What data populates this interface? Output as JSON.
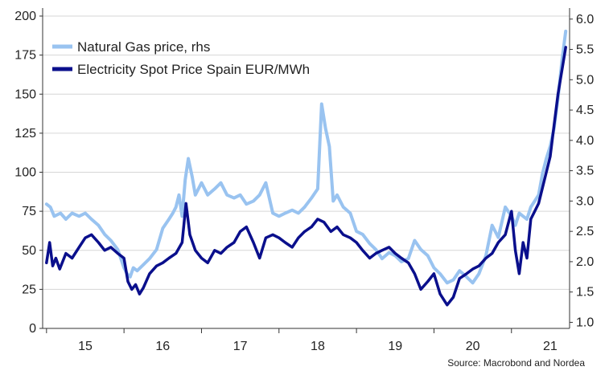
{
  "chart_data": {
    "type": "line",
    "x_unit": "year",
    "x_ticks": [
      "15",
      "16",
      "17",
      "18",
      "19",
      "20",
      "21"
    ],
    "xlim": [
      2014.95,
      2021.75
    ],
    "y_left": {
      "lim": [
        0,
        200
      ],
      "ticks": [
        "0",
        "25",
        "50",
        "75",
        "100",
        "125",
        "150",
        "175",
        "200"
      ]
    },
    "y_right": {
      "lim": [
        0.9,
        6.05
      ],
      "ticks": [
        "1.0",
        "1.5",
        "2.0",
        "2.5",
        "3.0",
        "3.5",
        "4.0",
        "4.5",
        "5.0",
        "5.5",
        "6.0"
      ]
    },
    "grid": "horizontal",
    "legend_position": "top-left",
    "series": [
      {
        "name": "Natural Gas price, rhs",
        "axis": "right",
        "color": "#99c3f0",
        "x": [
          2015.0,
          2015.05,
          2015.1,
          2015.18,
          2015.25,
          2015.33,
          2015.42,
          2015.5,
          2015.58,
          2015.67,
          2015.75,
          2015.83,
          2015.92,
          2016.0,
          2016.04,
          2016.08,
          2016.12,
          2016.17,
          2016.25,
          2016.33,
          2016.42,
          2016.5,
          2016.58,
          2016.63,
          2016.67,
          2016.71,
          2016.75,
          2016.79,
          2016.83,
          2016.88,
          2016.92,
          2017.0,
          2017.08,
          2017.17,
          2017.25,
          2017.33,
          2017.42,
          2017.5,
          2017.58,
          2017.67,
          2017.75,
          2017.83,
          2017.92,
          2018.0,
          2018.08,
          2018.17,
          2018.25,
          2018.33,
          2018.42,
          2018.5,
          2018.55,
          2018.6,
          2018.65,
          2018.7,
          2018.75,
          2018.83,
          2018.92,
          2019.0,
          2019.08,
          2019.17,
          2019.25,
          2019.33,
          2019.42,
          2019.5,
          2019.58,
          2019.67,
          2019.75,
          2019.83,
          2019.92,
          2020.0,
          2020.08,
          2020.17,
          2020.25,
          2020.33,
          2020.42,
          2020.5,
          2020.58,
          2020.67,
          2020.75,
          2020.83,
          2020.92,
          2021.0,
          2021.05,
          2021.1,
          2021.15,
          2021.2,
          2021.25,
          2021.3,
          2021.35,
          2021.4,
          2021.45,
          2021.5,
          2021.55,
          2021.6,
          2021.65,
          2021.7
        ],
        "values": [
          2.95,
          2.9,
          2.75,
          2.8,
          2.7,
          2.8,
          2.75,
          2.8,
          2.7,
          2.6,
          2.45,
          2.35,
          2.2,
          1.9,
          1.8,
          1.75,
          1.9,
          1.85,
          1.95,
          2.05,
          2.2,
          2.55,
          2.7,
          2.8,
          2.9,
          3.1,
          2.75,
          3.35,
          3.7,
          3.4,
          3.1,
          3.3,
          3.1,
          3.2,
          3.3,
          3.1,
          3.05,
          3.1,
          2.95,
          3.0,
          3.1,
          3.3,
          2.8,
          2.75,
          2.8,
          2.85,
          2.8,
          2.9,
          3.05,
          3.2,
          4.6,
          4.2,
          3.9,
          3.0,
          3.1,
          2.9,
          2.8,
          2.5,
          2.45,
          2.3,
          2.2,
          2.05,
          2.15,
          2.1,
          2.0,
          2.05,
          2.35,
          2.2,
          2.1,
          1.9,
          1.8,
          1.65,
          1.7,
          1.85,
          1.75,
          1.65,
          1.8,
          2.1,
          2.6,
          2.4,
          2.9,
          2.75,
          2.6,
          2.8,
          2.75,
          2.7,
          2.9,
          3.0,
          3.1,
          3.45,
          3.7,
          3.9,
          4.2,
          4.7,
          5.3,
          5.8
        ]
      },
      {
        "name": "Electricity Spot Price Spain EUR/MWh",
        "axis": "left",
        "color": "#0a0f8c",
        "x": [
          2015.0,
          2015.04,
          2015.08,
          2015.12,
          2015.17,
          2015.25,
          2015.33,
          2015.42,
          2015.5,
          2015.58,
          2015.67,
          2015.75,
          2015.83,
          2015.92,
          2016.0,
          2016.05,
          2016.1,
          2016.15,
          2016.2,
          2016.25,
          2016.33,
          2016.42,
          2016.5,
          2016.58,
          2016.67,
          2016.75,
          2016.8,
          2016.85,
          2016.92,
          2017.0,
          2017.08,
          2017.17,
          2017.25,
          2017.33,
          2017.42,
          2017.5,
          2017.58,
          2017.67,
          2017.75,
          2017.83,
          2017.92,
          2018.0,
          2018.08,
          2018.17,
          2018.25,
          2018.33,
          2018.42,
          2018.5,
          2018.58,
          2018.67,
          2018.75,
          2018.83,
          2018.92,
          2019.0,
          2019.08,
          2019.17,
          2019.25,
          2019.33,
          2019.42,
          2019.5,
          2019.58,
          2019.67,
          2019.75,
          2019.83,
          2019.92,
          2020.0,
          2020.08,
          2020.17,
          2020.25,
          2020.33,
          2020.42,
          2020.5,
          2020.58,
          2020.67,
          2020.75,
          2020.83,
          2020.92,
          2021.0,
          2021.05,
          2021.1,
          2021.15,
          2021.2,
          2021.25,
          2021.3,
          2021.35,
          2021.4,
          2021.45,
          2021.5,
          2021.55,
          2021.6,
          2021.65,
          2021.7
        ],
        "values": [
          42,
          55,
          40,
          45,
          38,
          48,
          45,
          52,
          58,
          60,
          55,
          50,
          52,
          48,
          45,
          30,
          25,
          28,
          22,
          26,
          35,
          40,
          42,
          45,
          48,
          55,
          80,
          60,
          50,
          45,
          42,
          50,
          48,
          52,
          55,
          62,
          65,
          55,
          45,
          58,
          60,
          58,
          55,
          52,
          58,
          62,
          65,
          70,
          68,
          62,
          65,
          60,
          58,
          55,
          50,
          45,
          48,
          50,
          52,
          48,
          45,
          42,
          35,
          25,
          30,
          35,
          22,
          15,
          20,
          32,
          35,
          38,
          40,
          45,
          48,
          55,
          60,
          75,
          50,
          35,
          55,
          45,
          70,
          75,
          80,
          90,
          100,
          110,
          130,
          150,
          165,
          180
        ]
      }
    ]
  },
  "source": "Source: Macrobond and Nordea"
}
